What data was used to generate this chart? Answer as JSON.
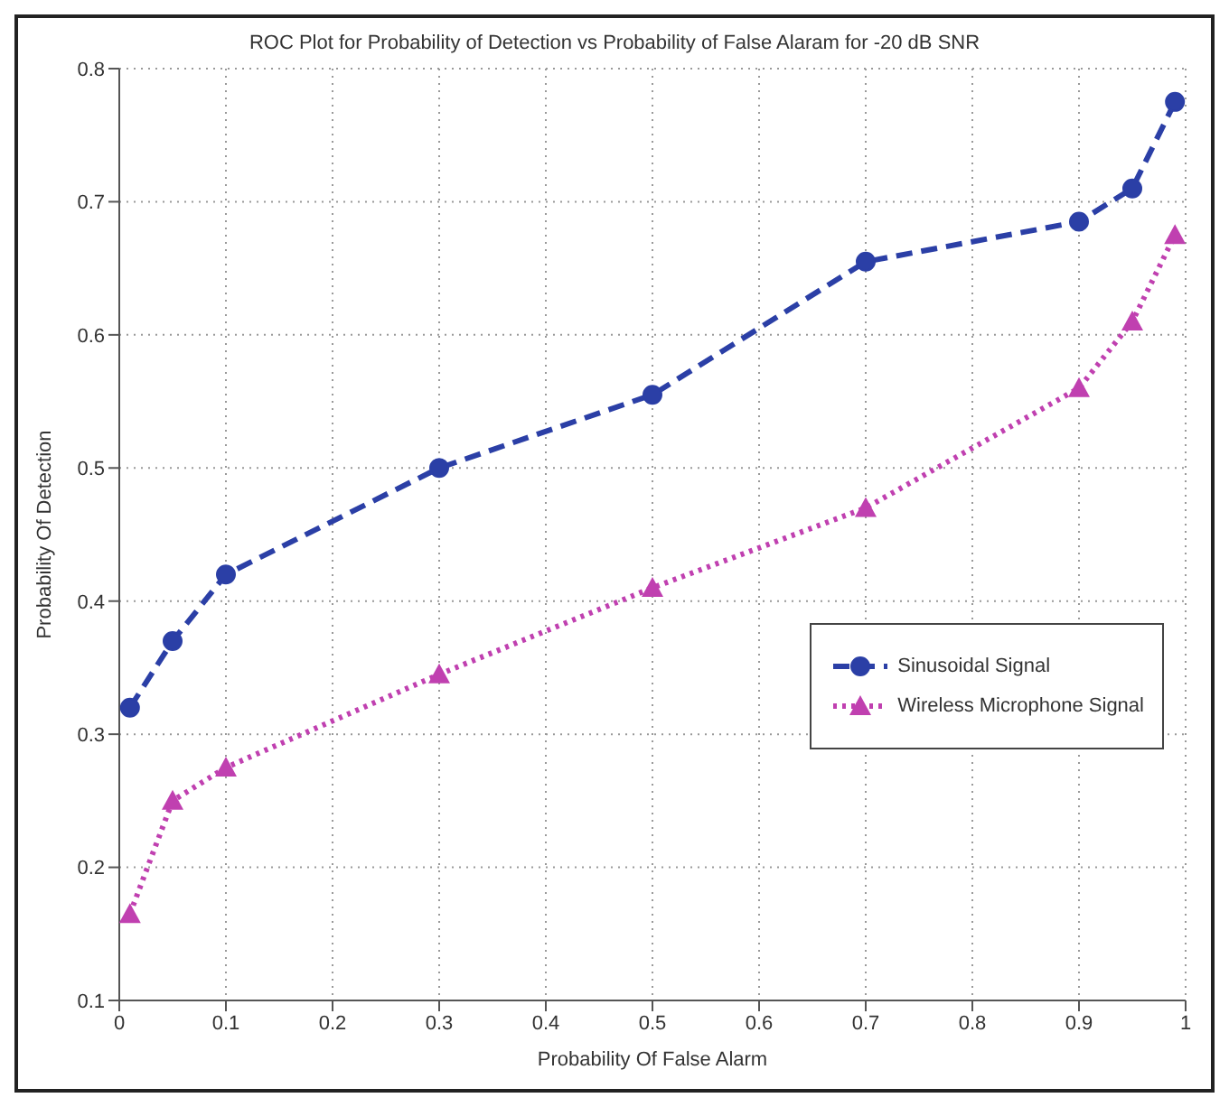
{
  "chart_data": {
    "type": "line",
    "title": "ROC Plot for Probability of Detection vs Probability of False Alaram for -20 dB SNR",
    "xlabel": "Probability Of False Alarm",
    "ylabel": "Probability Of Detection",
    "x": [
      0.01,
      0.05,
      0.1,
      0.3,
      0.5,
      0.7,
      0.9,
      0.95,
      0.99
    ],
    "series": [
      {
        "name": "Sinusoidal Signal",
        "color": "#2b3fa6",
        "values": [
          0.32,
          0.37,
          0.42,
          0.5,
          0.555,
          0.655,
          0.685,
          0.71,
          0.775
        ],
        "marker": "circle",
        "line_style": "dashed"
      },
      {
        "name": "Wireless Microphone Signal",
        "color": "#c040b0",
        "values": [
          0.165,
          0.25,
          0.275,
          0.345,
          0.41,
          0.47,
          0.56,
          0.61,
          0.675
        ],
        "marker": "triangle",
        "line_style": "dotted"
      }
    ],
    "xlim": [
      0,
      1
    ],
    "xticks": [
      0,
      0.1,
      0.2,
      0.3,
      0.4,
      0.5,
      0.6,
      0.7,
      0.8,
      0.9,
      1
    ],
    "ylim": [
      0.1,
      0.8
    ],
    "yticks": [
      0.1,
      0.2,
      0.3,
      0.4,
      0.5,
      0.6,
      0.7,
      0.8
    ],
    "grid": true,
    "legend": "right"
  }
}
